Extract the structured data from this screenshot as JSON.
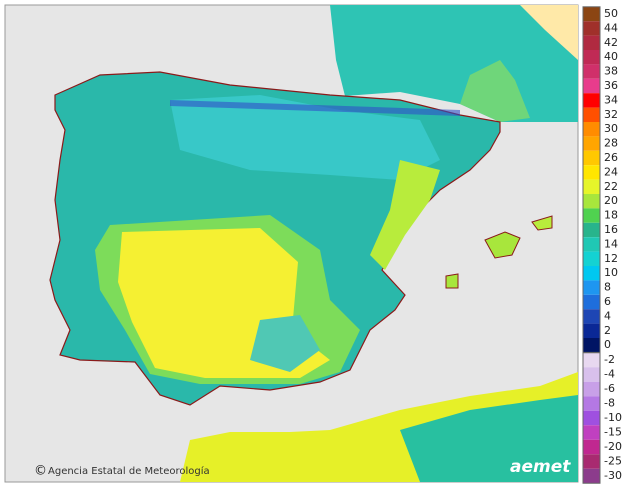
{
  "legend": {
    "upper": [
      {
        "label": 50,
        "color": "#8b4513"
      },
      {
        "label": 44,
        "color": "#a0302a"
      },
      {
        "label": 42,
        "color": "#b02a40"
      },
      {
        "label": 40,
        "color": "#c02a55"
      },
      {
        "label": 38,
        "color": "#d0306a"
      },
      {
        "label": 36,
        "color": "#e83c8c"
      },
      {
        "label": 34,
        "color": "#ff0000"
      },
      {
        "label": 32,
        "color": "#ff5000"
      },
      {
        "label": 30,
        "color": "#ff8c00"
      },
      {
        "label": 28,
        "color": "#ffa500"
      },
      {
        "label": 26,
        "color": "#ffc800"
      },
      {
        "label": 24,
        "color": "#ffe600"
      },
      {
        "label": 22,
        "color": "#e6f52a"
      },
      {
        "label": 20,
        "color": "#a8e63c"
      },
      {
        "label": 18,
        "color": "#50d250"
      },
      {
        "label": 16,
        "color": "#28b48c"
      },
      {
        "label": 14,
        "color": "#20c8b4"
      },
      {
        "label": 12,
        "color": "#14d2d2"
      },
      {
        "label": 10,
        "color": "#00c8f0"
      },
      {
        "label": 8,
        "color": "#1e96f0"
      },
      {
        "label": 6,
        "color": "#1e6edc"
      },
      {
        "label": 4,
        "color": "#1e46b4"
      },
      {
        "label": 2,
        "color": "#0a2896"
      },
      {
        "label": 0,
        "color": "#001464"
      }
    ],
    "lower": [
      {
        "label": -2,
        "color": "#e8d8f0"
      },
      {
        "label": -4,
        "color": "#d8c0ec"
      },
      {
        "label": -6,
        "color": "#c8a0e8"
      },
      {
        "label": -8,
        "color": "#b478e4"
      },
      {
        "label": -10,
        "color": "#9f50e0"
      },
      {
        "label": -15,
        "color": "#c040c0"
      },
      {
        "label": -20,
        "color": "#c02890"
      },
      {
        "label": -25,
        "color": "#a82a70"
      },
      {
        "label": -30,
        "color": "#8c3c8c"
      }
    ]
  },
  "credit": "Agencia Estatal de Meteorología",
  "logo": "aemet"
}
